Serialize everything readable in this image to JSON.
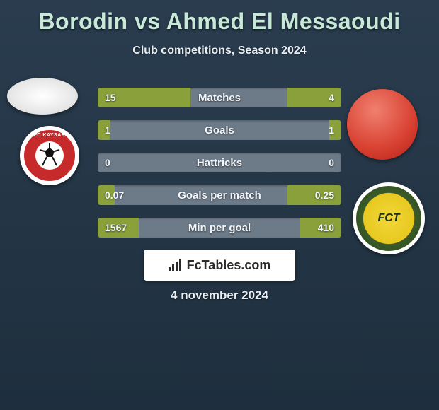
{
  "title": "Borodin vs Ahmed El Messaoudi",
  "subtitle": "Club competitions, Season 2024",
  "date": "4 november 2024",
  "watermark": {
    "text": "FcTables.com"
  },
  "player_left": {
    "name": "Borodin",
    "club_badge_text": "FC KAYSAR",
    "club_primary_color": "#c72a2a"
  },
  "player_right": {
    "name": "Ahmed El Messaoudi",
    "club_badge_text": "FCT",
    "club_primary_color": "#f2d838",
    "club_secondary_color": "#2a4a1a"
  },
  "colors": {
    "background_top": "#2a3d4f",
    "background_bottom": "#1e2e3d",
    "title_color": "#c8e8d8",
    "text_color": "#e8eef4",
    "bar_track": "#6d7a88",
    "bar_fill": "#8aa03a"
  },
  "comparison": {
    "type": "bar",
    "rows": [
      {
        "label": "Matches",
        "left_val": "15",
        "right_val": "4",
        "left_pct": 38,
        "right_pct": 22
      },
      {
        "label": "Goals",
        "left_val": "1",
        "right_val": "1",
        "left_pct": 5,
        "right_pct": 5
      },
      {
        "label": "Hattricks",
        "left_val": "0",
        "right_val": "0",
        "left_pct": 0,
        "right_pct": 0
      },
      {
        "label": "Goals per match",
        "left_val": "0.07",
        "right_val": "0.25",
        "left_pct": 7,
        "right_pct": 22
      },
      {
        "label": "Min per goal",
        "left_val": "1567",
        "right_val": "410",
        "left_pct": 17,
        "right_pct": 17
      }
    ]
  }
}
